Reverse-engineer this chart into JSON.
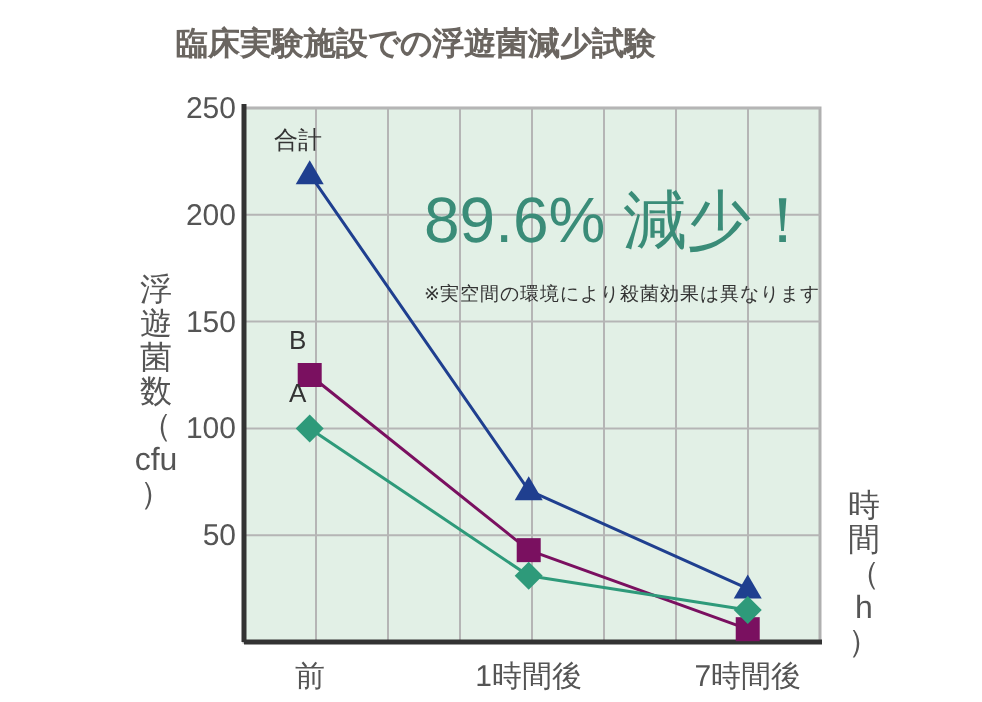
{
  "chart_data": {
    "type": "line",
    "title": "臨床実験施設での浮遊菌減少試験",
    "xlabel": "時間（h）",
    "ylabel": "浮遊菌数（cfu）",
    "categories": [
      "前",
      "1時間後",
      "7時間後"
    ],
    "series": [
      {
        "name": "合計",
        "color": "#1f3f8f",
        "marker": "triangle",
        "values": [
          219,
          71,
          25
        ]
      },
      {
        "name": "B",
        "color": "#7a1060",
        "marker": "square",
        "values": [
          125,
          43,
          6
        ]
      },
      {
        "name": "A",
        "color": "#2e9a7a",
        "marker": "diamond",
        "values": [
          100,
          31,
          15
        ]
      }
    ],
    "ylim": [
      0,
      250
    ],
    "yticks": [
      50,
      100,
      150,
      200,
      250
    ],
    "grid": true,
    "annotations": [
      "89.6% 減少！",
      "※実空間の環境により殺菌効果は異なります"
    ]
  }
}
